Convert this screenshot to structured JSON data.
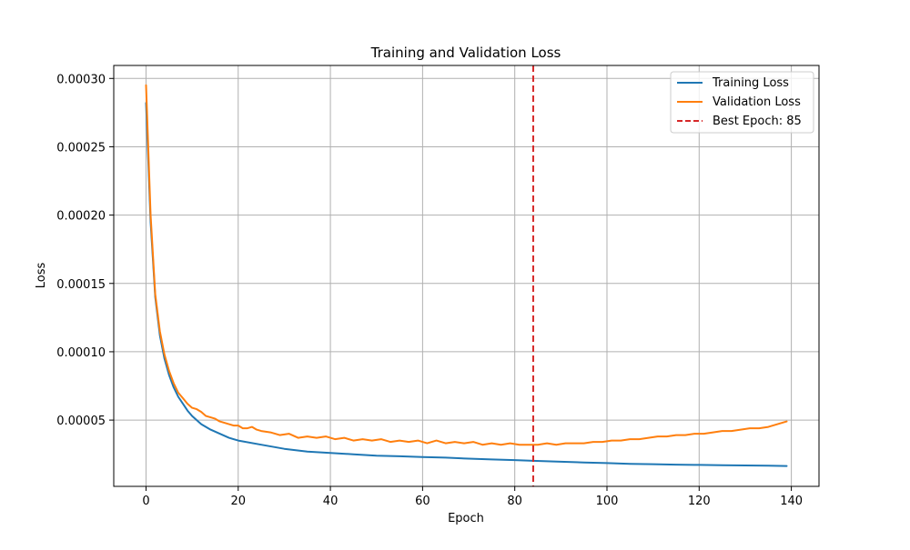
{
  "chart_data": {
    "type": "line",
    "title": "Training and Validation Loss",
    "xlabel": "Epoch",
    "ylabel": "Loss",
    "xlim": [
      -7,
      146
    ],
    "ylim": [
      1.5e-06,
      0.0003095
    ],
    "xticks": [
      0,
      20,
      40,
      60,
      80,
      100,
      120,
      140
    ],
    "yticks": [
      5e-05,
      0.0001,
      0.00015,
      0.0002,
      0.00025,
      0.0003
    ],
    "ytick_labels": [
      "0.00005",
      "0.00010",
      "0.00015",
      "0.00020",
      "0.00025",
      "0.00030"
    ],
    "grid": true,
    "legend_position": "top-right",
    "colors": {
      "training": "#1f77b4",
      "validation": "#ff7f0e",
      "best_epoch": "#d62728",
      "grid": "#b0b0b0"
    },
    "vertical_line": {
      "label": "Best Epoch: 85",
      "x": 84,
      "style": "dashed"
    },
    "series": [
      {
        "name": "Training Loss",
        "points": [
          [
            0,
            0.000282
          ],
          [
            1,
            0.000195
          ],
          [
            2,
            0.00014
          ],
          [
            3,
            0.000112
          ],
          [
            4,
            9.5e-05
          ],
          [
            5,
            8.3e-05
          ],
          [
            6,
            7.4e-05
          ],
          [
            7,
            6.7e-05
          ],
          [
            8,
            6.2e-05
          ],
          [
            9,
            5.7e-05
          ],
          [
            10,
            5.3e-05
          ],
          [
            12,
            4.7e-05
          ],
          [
            14,
            4.3e-05
          ],
          [
            16,
            4e-05
          ],
          [
            18,
            3.7e-05
          ],
          [
            20,
            3.5e-05
          ],
          [
            25,
            3.2e-05
          ],
          [
            30,
            2.9e-05
          ],
          [
            35,
            2.7e-05
          ],
          [
            40,
            2.6e-05
          ],
          [
            45,
            2.5e-05
          ],
          [
            50,
            2.4e-05
          ],
          [
            55,
            2.35e-05
          ],
          [
            60,
            2.3e-05
          ],
          [
            65,
            2.25e-05
          ],
          [
            70,
            2.18e-05
          ],
          [
            75,
            2.12e-05
          ],
          [
            80,
            2.07e-05
          ],
          [
            84,
            2.02e-05
          ],
          [
            90,
            1.95e-05
          ],
          [
            95,
            1.9e-05
          ],
          [
            100,
            1.85e-05
          ],
          [
            105,
            1.8e-05
          ],
          [
            110,
            1.77e-05
          ],
          [
            115,
            1.74e-05
          ],
          [
            120,
            1.72e-05
          ],
          [
            125,
            1.7e-05
          ],
          [
            130,
            1.68e-05
          ],
          [
            135,
            1.66e-05
          ],
          [
            139,
            1.64e-05
          ]
        ]
      },
      {
        "name": "Validation Loss",
        "points": [
          [
            0,
            0.000295
          ],
          [
            1,
            0.0002
          ],
          [
            2,
            0.000142
          ],
          [
            3,
            0.000115
          ],
          [
            4,
            9.8e-05
          ],
          [
            5,
            8.6e-05
          ],
          [
            6,
            7.7e-05
          ],
          [
            7,
            7e-05
          ],
          [
            8,
            6.6e-05
          ],
          [
            9,
            6.2e-05
          ],
          [
            10,
            5.9e-05
          ],
          [
            11,
            5.8e-05
          ],
          [
            12,
            5.6e-05
          ],
          [
            13,
            5.3e-05
          ],
          [
            14,
            5.2e-05
          ],
          [
            15,
            5.1e-05
          ],
          [
            16,
            4.9e-05
          ],
          [
            17,
            4.8e-05
          ],
          [
            18,
            4.7e-05
          ],
          [
            19,
            4.6e-05
          ],
          [
            20,
            4.6e-05
          ],
          [
            21,
            4.4e-05
          ],
          [
            22,
            4.4e-05
          ],
          [
            23,
            4.5e-05
          ],
          [
            24,
            4.3e-05
          ],
          [
            25,
            4.2e-05
          ],
          [
            27,
            4.1e-05
          ],
          [
            29,
            3.9e-05
          ],
          [
            31,
            4e-05
          ],
          [
            33,
            3.7e-05
          ],
          [
            35,
            3.8e-05
          ],
          [
            37,
            3.7e-05
          ],
          [
            39,
            3.8e-05
          ],
          [
            41,
            3.6e-05
          ],
          [
            43,
            3.7e-05
          ],
          [
            45,
            3.5e-05
          ],
          [
            47,
            3.6e-05
          ],
          [
            49,
            3.5e-05
          ],
          [
            51,
            3.6e-05
          ],
          [
            53,
            3.4e-05
          ],
          [
            55,
            3.5e-05
          ],
          [
            57,
            3.4e-05
          ],
          [
            59,
            3.5e-05
          ],
          [
            61,
            3.3e-05
          ],
          [
            63,
            3.5e-05
          ],
          [
            65,
            3.3e-05
          ],
          [
            67,
            3.4e-05
          ],
          [
            69,
            3.3e-05
          ],
          [
            71,
            3.4e-05
          ],
          [
            73,
            3.2e-05
          ],
          [
            75,
            3.3e-05
          ],
          [
            77,
            3.2e-05
          ],
          [
            79,
            3.3e-05
          ],
          [
            81,
            3.2e-05
          ],
          [
            83,
            3.2e-05
          ],
          [
            85,
            3.2e-05
          ],
          [
            87,
            3.3e-05
          ],
          [
            89,
            3.2e-05
          ],
          [
            91,
            3.3e-05
          ],
          [
            93,
            3.3e-05
          ],
          [
            95,
            3.3e-05
          ],
          [
            97,
            3.4e-05
          ],
          [
            99,
            3.4e-05
          ],
          [
            101,
            3.5e-05
          ],
          [
            103,
            3.5e-05
          ],
          [
            105,
            3.6e-05
          ],
          [
            107,
            3.6e-05
          ],
          [
            109,
            3.7e-05
          ],
          [
            111,
            3.8e-05
          ],
          [
            113,
            3.8e-05
          ],
          [
            115,
            3.9e-05
          ],
          [
            117,
            3.9e-05
          ],
          [
            119,
            4e-05
          ],
          [
            121,
            4e-05
          ],
          [
            123,
            4.1e-05
          ],
          [
            125,
            4.2e-05
          ],
          [
            127,
            4.2e-05
          ],
          [
            129,
            4.3e-05
          ],
          [
            131,
            4.4e-05
          ],
          [
            133,
            4.4e-05
          ],
          [
            135,
            4.5e-05
          ],
          [
            137,
            4.7e-05
          ],
          [
            139,
            4.9e-05
          ]
        ]
      }
    ]
  }
}
